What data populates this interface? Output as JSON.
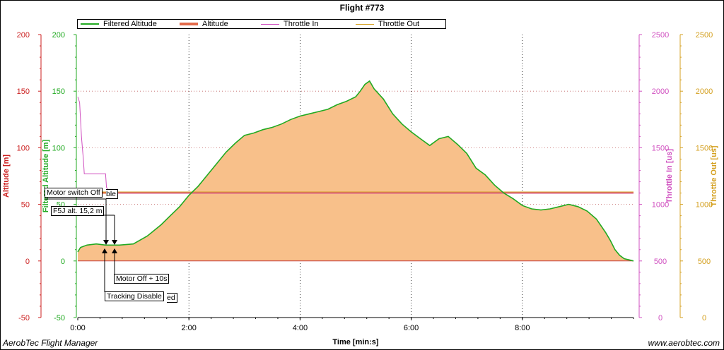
{
  "window": {
    "title": "Flight #773",
    "footer_left": "AerobTec Flight Manager",
    "footer_right": "www.aerobtec.com"
  },
  "legend": [
    {
      "label": "Filtered Altitude",
      "color": "#22aa22"
    },
    {
      "label": "Altitude",
      "color": "#e36a4a"
    },
    {
      "label": "Throttle In",
      "color": "#d050c0"
    },
    {
      "label": "Throttle Out",
      "color": "#d4a020"
    }
  ],
  "annotations": [
    {
      "text": "Motor switch Off"
    },
    {
      "text": "ble"
    },
    {
      "text": "F5J alt. 15,2 m"
    },
    {
      "text": "Motor Off + 10s"
    },
    {
      "text": "Tracking Disable"
    },
    {
      "text": "ed"
    }
  ],
  "chart_data": {
    "type": "area",
    "title": "Flight #773",
    "xlabel": "Time [min:s]",
    "x_ticks": [
      "0:00",
      "2:00",
      "4:00",
      "6:00",
      "8:00"
    ],
    "xlim": [
      0,
      600
    ],
    "axes": [
      {
        "label": "Altitude [m]",
        "ticks": [
          "-50",
          "0",
          "50",
          "100",
          "150",
          "200"
        ],
        "range": [
          -50,
          200
        ],
        "color": "#cc2222"
      },
      {
        "label": "Filtered Altitude [m]",
        "ticks": [
          "-50",
          "0",
          "50",
          "100",
          "150",
          "200"
        ],
        "range": [
          -50,
          200
        ],
        "color": "#22aa22"
      },
      {
        "label": "Throttle In [us]",
        "ticks": [
          "0",
          "500",
          "1000",
          "1500",
          "2000",
          "2500"
        ],
        "range": [
          0,
          2500
        ],
        "color": "#d050c0"
      },
      {
        "label": "Throttle Out [us]",
        "ticks": [
          "0",
          "500",
          "1000",
          "1500",
          "2000",
          "2500"
        ],
        "range": [
          0,
          2500
        ],
        "color": "#d4a020"
      }
    ],
    "grid": true,
    "legend_position": "top",
    "series": [
      {
        "name": "Filtered Altitude",
        "x": [
          0,
          3,
          10,
          20,
          30,
          45,
          60,
          75,
          90,
          100,
          110,
          120,
          130,
          140,
          150,
          160,
          170,
          180,
          190,
          200,
          210,
          220,
          230,
          240,
          250,
          260,
          270,
          280,
          290,
          300,
          305,
          310,
          315,
          320,
          330,
          340,
          350,
          360,
          370,
          380,
          390,
          400,
          410,
          420,
          430,
          440,
          450,
          460,
          470,
          480,
          490,
          500,
          510,
          520,
          530,
          540,
          550,
          560,
          570,
          575,
          580,
          585,
          590,
          595,
          600
        ],
        "values": [
          8,
          12,
          14,
          15,
          14,
          14,
          15,
          22,
          32,
          40,
          48,
          58,
          66,
          76,
          86,
          96,
          104,
          111,
          113,
          116,
          118,
          121,
          125,
          128,
          130,
          132,
          134,
          138,
          141,
          145,
          150,
          156,
          159,
          152,
          143,
          130,
          121,
          114,
          108,
          102,
          108,
          110,
          103,
          95,
          82,
          76,
          67,
          60,
          55,
          49,
          46,
          45,
          46,
          48,
          50,
          48,
          44,
          37,
          25,
          18,
          10,
          5,
          2,
          1,
          0
        ]
      },
      {
        "name": "Altitude",
        "x": [
          0,
          600
        ],
        "values": [
          60,
          60
        ]
      },
      {
        "name": "Throttle In",
        "x": [
          0,
          2,
          3,
          4,
          5,
          6,
          7,
          10,
          20,
          30,
          31,
          35,
          600
        ],
        "values": [
          1950,
          1900,
          1750,
          1600,
          1500,
          1400,
          1270,
          1270,
          1270,
          1270,
          1150,
          1100,
          1100
        ]
      },
      {
        "name": "Throttle Out",
        "x": [
          0,
          600
        ],
        "values": [
          1110,
          1110
        ]
      }
    ]
  }
}
